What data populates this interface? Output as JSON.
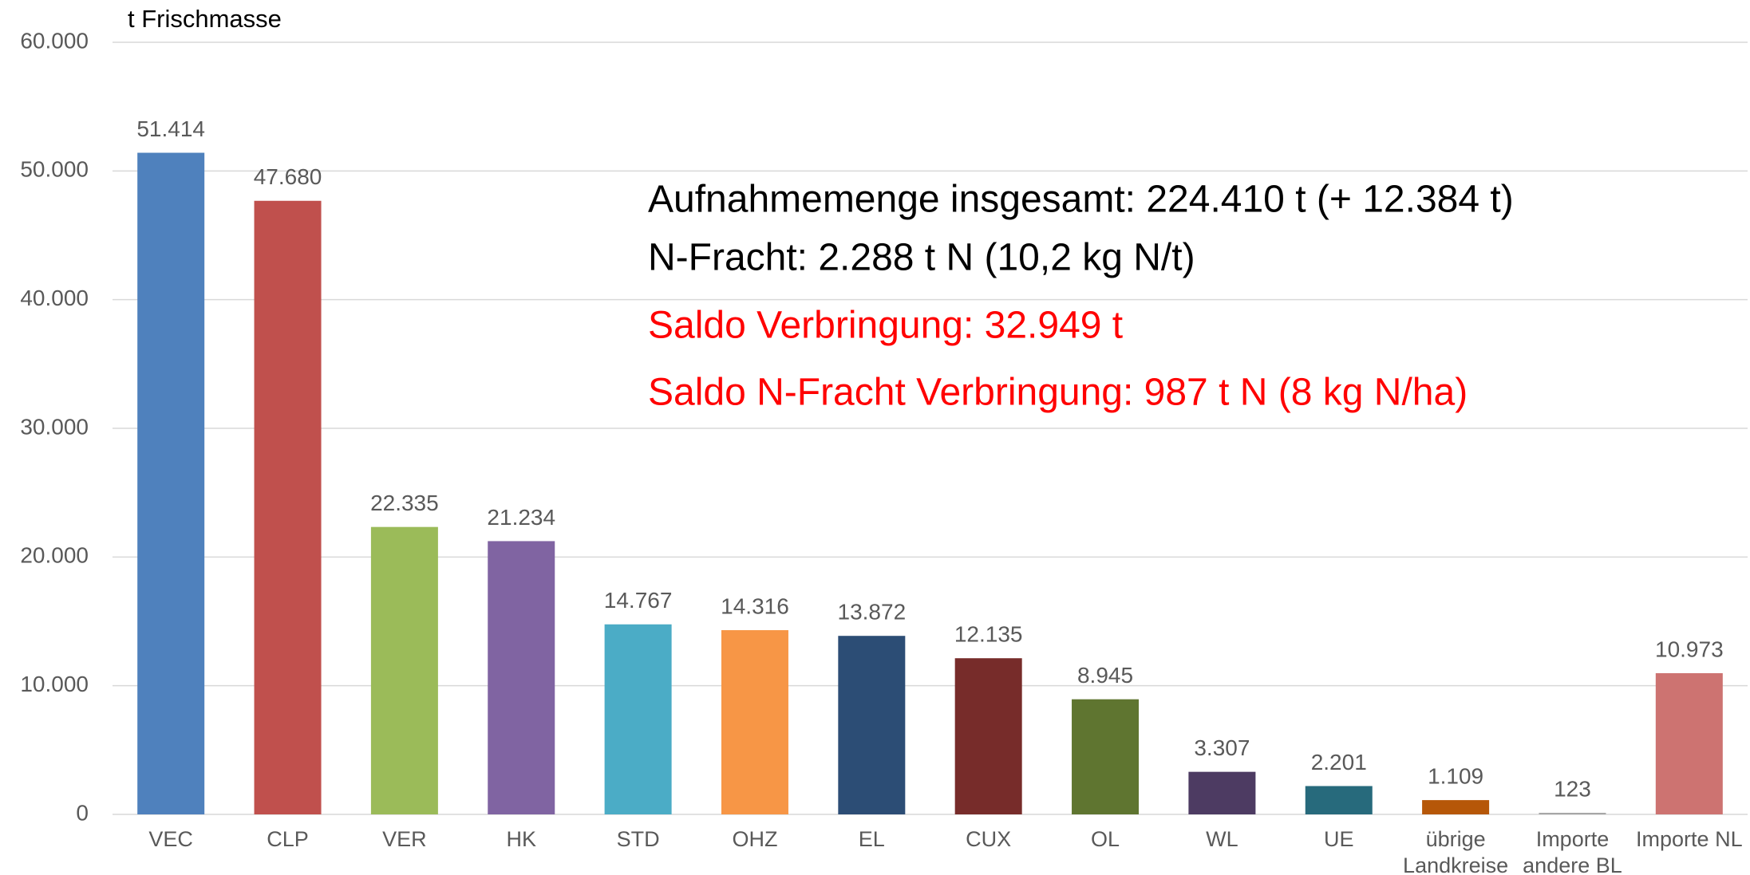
{
  "chart_data": {
    "type": "bar",
    "y_axis_label": "t Frischmasse",
    "categories": [
      "VEC",
      "CLP",
      "VER",
      "HK",
      "STD",
      "OHZ",
      "EL",
      "CUX",
      "OL",
      "WL",
      "UE",
      "übrige\nLandkreise",
      "Importe\nandere BL",
      "Importe NL"
    ],
    "values": [
      51414,
      47680,
      22335,
      21234,
      14767,
      14316,
      13872,
      12135,
      8945,
      3307,
      2201,
      1109,
      123,
      10973
    ],
    "value_labels": [
      "51.414",
      "47.680",
      "22.335",
      "21.234",
      "14.767",
      "14.316",
      "13.872",
      "12.135",
      "8.945",
      "3.307",
      "2.201",
      "1.109",
      "123",
      "10.973"
    ],
    "colors": [
      "#4f81bd",
      "#c0504d",
      "#9bbb59",
      "#8064a2",
      "#4bacc6",
      "#f79646",
      "#2c4d75",
      "#772c2a",
      "#5f7530",
      "#4d3b62",
      "#276a7c",
      "#b65708",
      "#a6a6a6",
      "#cd7371"
    ],
    "ylim": [
      0,
      60000
    ],
    "yticks": [
      0,
      {
        "value": 10000,
        "label": "10.000"
      },
      {
        "value": 20000,
        "label": "20.000"
      },
      {
        "value": 30000,
        "label": "30.000"
      },
      {
        "value": 40000,
        "label": "40.000"
      },
      {
        "value": 50000,
        "label": "50.000"
      },
      {
        "value": 60000,
        "label": "60.000"
      }
    ],
    "grid": true,
    "annotations": [
      {
        "text": "Aufnahmemenge insgesamt:  224.410 t (+ 12.384 t)",
        "color": "#000000"
      },
      {
        "text": "N-Fracht: 2.288 t N (10,2 kg N/t)",
        "color": "#000000"
      },
      {
        "text": "Saldo Verbringung: 32.949 t",
        "color": "#ff0000"
      },
      {
        "text": "Saldo N-Fracht Verbringung: 987 t N (8 kg N/ha)",
        "color": "#ff0000"
      }
    ]
  }
}
